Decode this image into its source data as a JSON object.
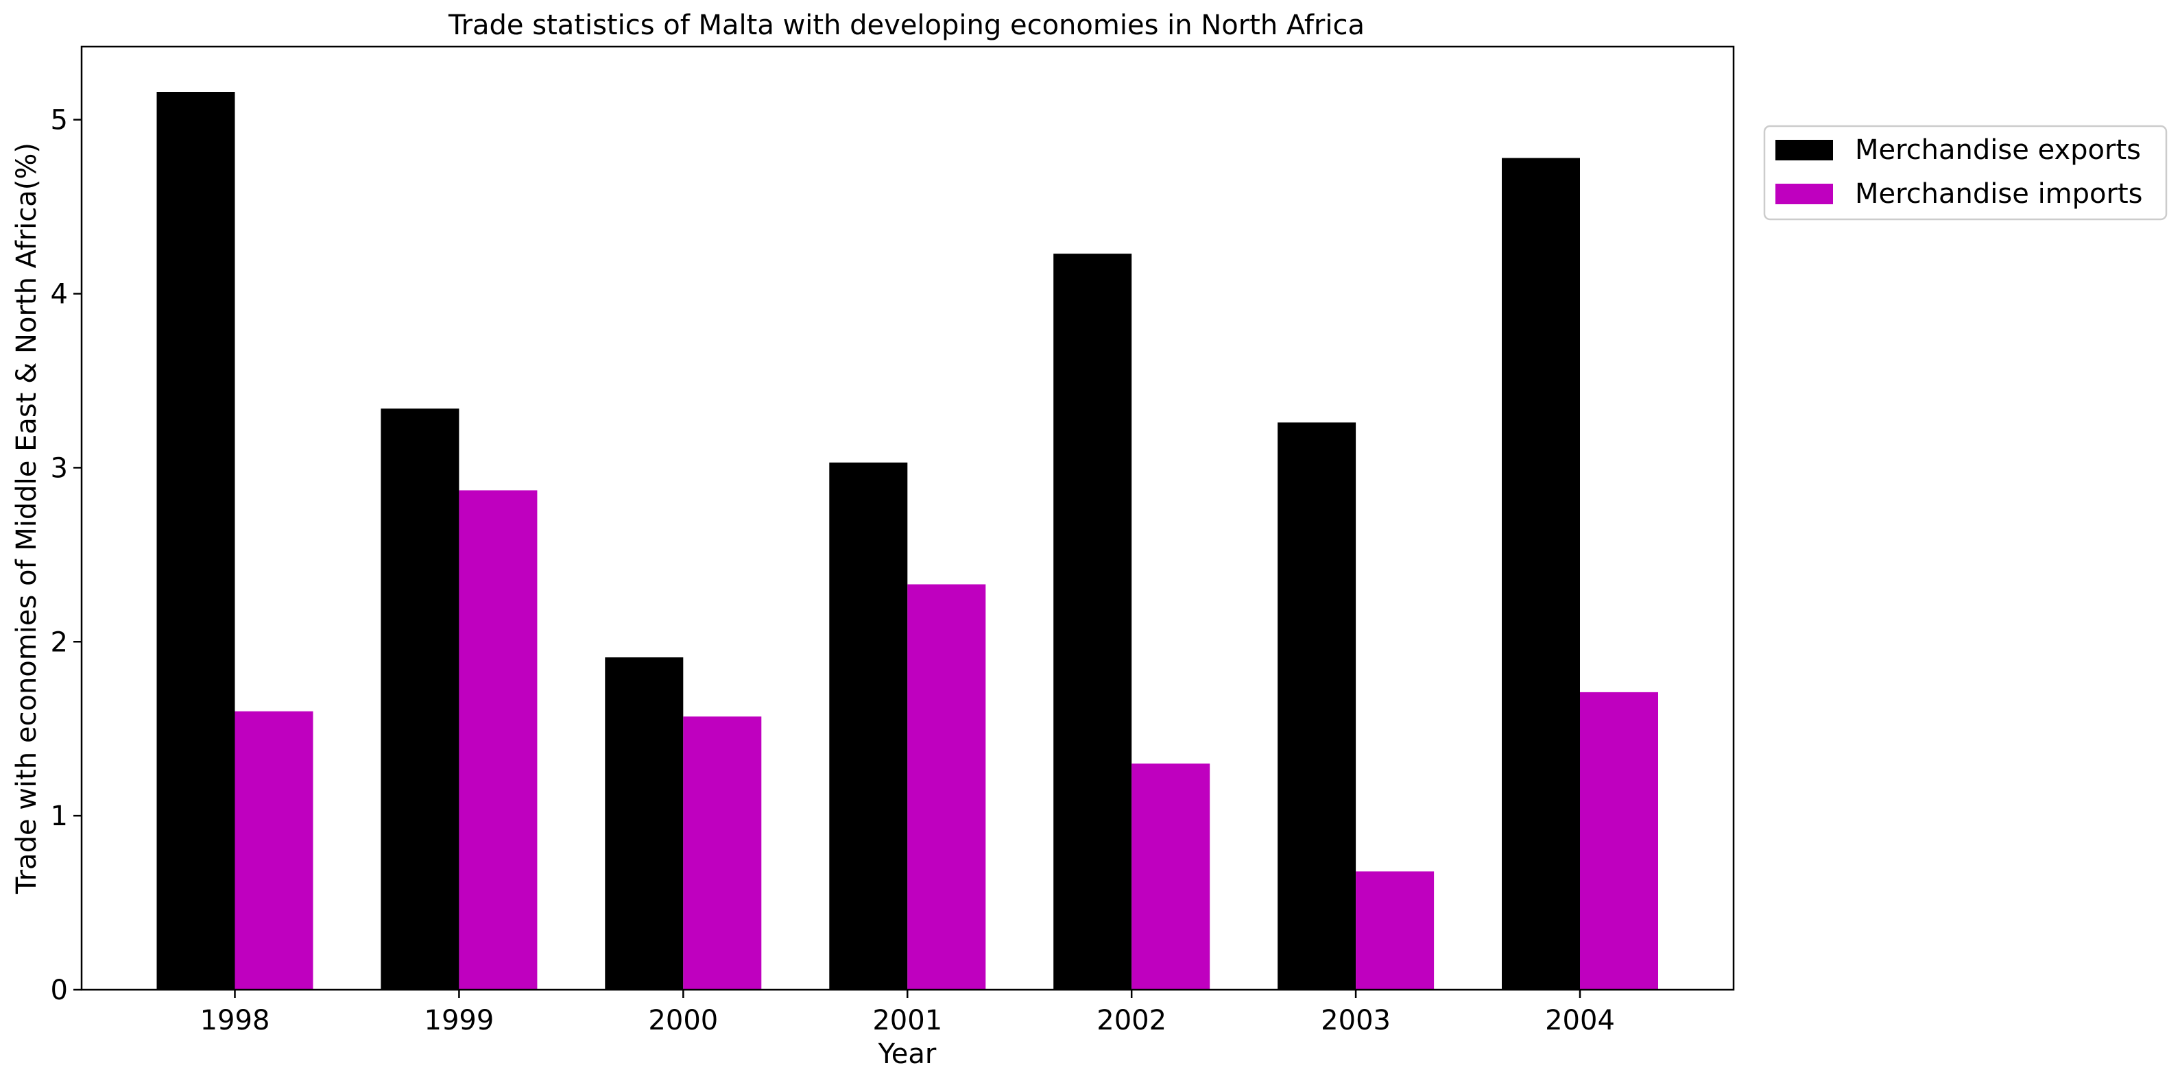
{
  "chart_data": {
    "type": "bar",
    "title": "Trade statistics of Malta with developing economies in North Africa",
    "xlabel": "Year",
    "ylabel": "Trade with economies of Middle East & North Africa(%)",
    "categories": [
      "1998",
      "1999",
      "2000",
      "2001",
      "2002",
      "2003",
      "2004"
    ],
    "series": [
      {
        "name": "Merchandise exports",
        "color": "#000000",
        "values": [
          5.16,
          3.34,
          1.91,
          3.03,
          4.23,
          3.26,
          4.78
        ]
      },
      {
        "name": "Merchandise imports",
        "color": "#bf00bf",
        "values": [
          1.6,
          2.87,
          1.57,
          2.33,
          1.3,
          0.68,
          1.71
        ]
      }
    ],
    "yticks": [
      "0",
      "1",
      "2",
      "3",
      "4",
      "5"
    ],
    "ylim": [
      0,
      5.42
    ],
    "legend_position": "outside upper right",
    "grid": false
  }
}
